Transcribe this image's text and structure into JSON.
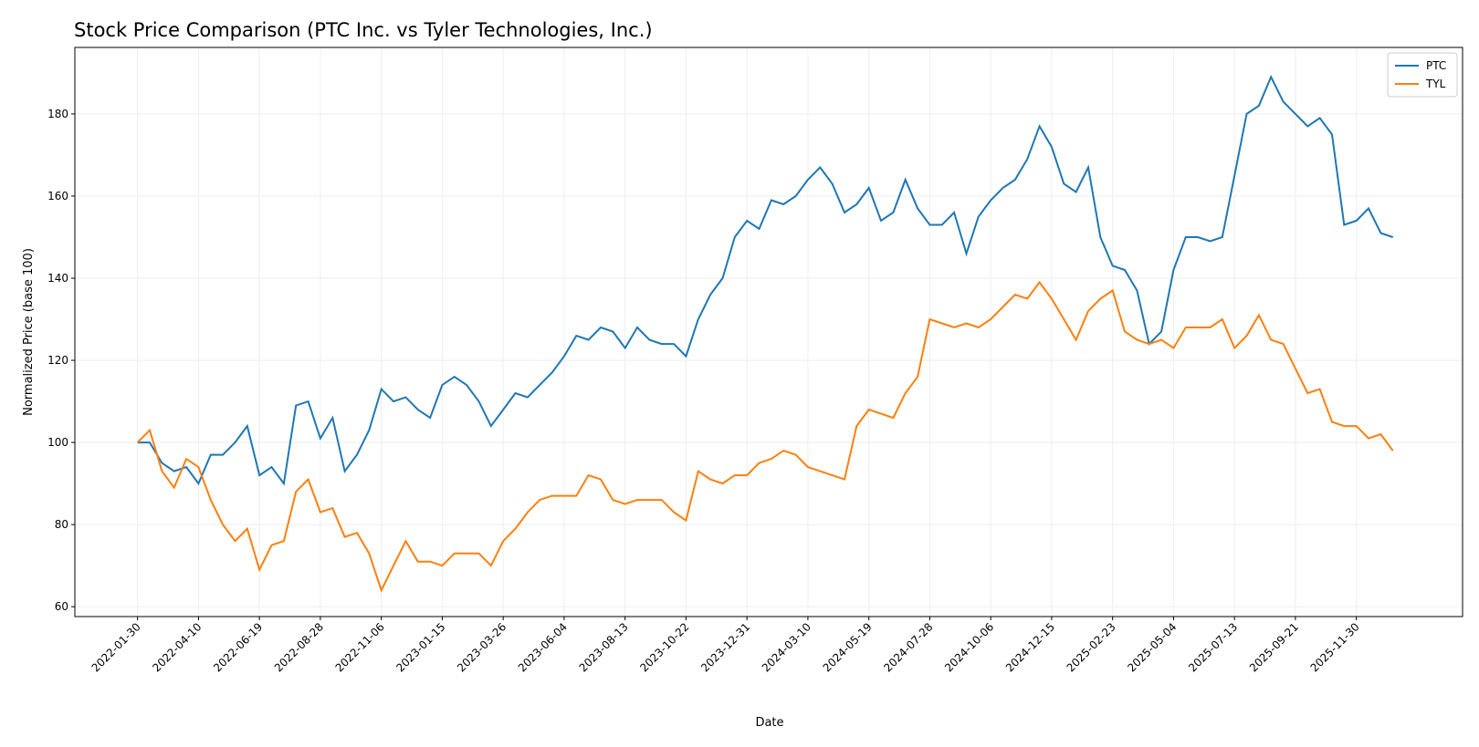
{
  "chart_data": {
    "type": "line",
    "title": "Stock Price Comparison (PTC Inc. vs Tyler Technologies, Inc.)",
    "xlabel": "Date",
    "ylabel": "Normalized Price (base 100)",
    "x": [
      "2022-01-30",
      "2022-02-13",
      "2022-02-27",
      "2022-03-13",
      "2022-03-27",
      "2022-04-10",
      "2022-04-24",
      "2022-05-08",
      "2022-05-22",
      "2022-06-05",
      "2022-06-19",
      "2022-07-03",
      "2022-07-17",
      "2022-07-31",
      "2022-08-14",
      "2022-08-28",
      "2022-09-11",
      "2022-09-25",
      "2022-10-09",
      "2022-10-23",
      "2022-11-06",
      "2022-11-20",
      "2022-12-04",
      "2022-12-18",
      "2023-01-01",
      "2023-01-15",
      "2023-01-29",
      "2023-02-12",
      "2023-02-26",
      "2023-03-12",
      "2023-03-26",
      "2023-04-09",
      "2023-04-23",
      "2023-05-07",
      "2023-05-21",
      "2023-06-04",
      "2023-06-18",
      "2023-07-02",
      "2023-07-16",
      "2023-07-30",
      "2023-08-13",
      "2023-08-27",
      "2023-09-10",
      "2023-09-24",
      "2023-10-08",
      "2023-10-22",
      "2023-11-05",
      "2023-11-19",
      "2023-12-03",
      "2023-12-17",
      "2023-12-31",
      "2024-01-14",
      "2024-01-28",
      "2024-02-11",
      "2024-02-25",
      "2024-03-10",
      "2024-03-24",
      "2024-04-07",
      "2024-04-21",
      "2024-05-05",
      "2024-05-19",
      "2024-06-02",
      "2024-06-16",
      "2024-06-30",
      "2024-07-14",
      "2024-07-28",
      "2024-08-11",
      "2024-08-25",
      "2024-09-08",
      "2024-09-22",
      "2024-10-06",
      "2024-10-20",
      "2024-11-03",
      "2024-11-17",
      "2024-12-01",
      "2024-12-15",
      "2024-12-29",
      "2025-01-12",
      "2025-01-26",
      "2025-02-09",
      "2025-02-23",
      "2025-03-09",
      "2025-03-23",
      "2025-04-06",
      "2025-04-20",
      "2025-05-04",
      "2025-05-18",
      "2025-06-01",
      "2025-06-15",
      "2025-06-29",
      "2025-07-13",
      "2025-07-27",
      "2025-08-10",
      "2025-08-24",
      "2025-09-07",
      "2025-09-21",
      "2025-10-05",
      "2025-10-19",
      "2025-11-02",
      "2025-11-16",
      "2025-11-30",
      "2025-12-14",
      "2025-12-28",
      "2026-01-11"
    ],
    "series": [
      {
        "name": "PTC",
        "color": "#1f77b4",
        "values": [
          100,
          100,
          95,
          93,
          94,
          90,
          97,
          97,
          100,
          104,
          92,
          94,
          90,
          109,
          110,
          101,
          106,
          93,
          97,
          103,
          113,
          110,
          111,
          108,
          106,
          114,
          116,
          114,
          110,
          104,
          108,
          112,
          111,
          114,
          117,
          121,
          126,
          125,
          128,
          127,
          123,
          128,
          125,
          124,
          124,
          121,
          130,
          136,
          140,
          150,
          154,
          152,
          159,
          158,
          160,
          164,
          167,
          163,
          156,
          158,
          162,
          154,
          156,
          164,
          157,
          153,
          153,
          156,
          146,
          155,
          159,
          162,
          164,
          169,
          177,
          172,
          163,
          161,
          167,
          150,
          143,
          142,
          137,
          124,
          127,
          142,
          150,
          150,
          149,
          150,
          165,
          180,
          182,
          189,
          183,
          180,
          177,
          179,
          175,
          153,
          154,
          157,
          151,
          150
        ]
      },
      {
        "name": "TYL",
        "color": "#ff7f0e",
        "values": [
          100,
          103,
          93,
          89,
          96,
          94,
          86,
          80,
          76,
          79,
          69,
          75,
          76,
          88,
          91,
          83,
          84,
          77,
          78,
          73,
          64,
          70,
          76,
          71,
          71,
          70,
          73,
          73,
          73,
          70,
          76,
          79,
          83,
          86,
          87,
          87,
          87,
          92,
          91,
          86,
          85,
          86,
          86,
          86,
          83,
          81,
          93,
          91,
          90,
          92,
          92,
          95,
          96,
          98,
          97,
          94,
          93,
          92,
          91,
          104,
          108,
          107,
          106,
          112,
          116,
          130,
          129,
          128,
          129,
          128,
          130,
          133,
          136,
          135,
          139,
          135,
          130,
          125,
          132,
          135,
          137,
          127,
          125,
          124,
          125,
          123,
          128,
          128,
          128,
          130,
          123,
          126,
          131,
          125,
          124,
          118,
          112,
          113,
          105,
          104,
          104,
          101,
          102,
          98
        ]
      }
    ],
    "xlim": [
      "2021-11-19",
      "2026-04-01"
    ],
    "xticks": [
      "2022-01-30",
      "2022-04-10",
      "2022-06-19",
      "2022-08-28",
      "2022-11-06",
      "2023-01-15",
      "2023-03-26",
      "2023-06-04",
      "2023-08-13",
      "2023-10-22",
      "2023-12-31",
      "2024-03-10",
      "2024-05-19",
      "2024-07-28",
      "2024-10-06",
      "2024-12-15",
      "2025-02-23",
      "2025-05-04",
      "2025-07-13",
      "2025-09-21",
      "2025-11-30"
    ],
    "ylim": [
      57.6,
      196.2
    ],
    "yticks": [
      60,
      80,
      100,
      120,
      140,
      160,
      180
    ],
    "grid": true,
    "legend": "upper right"
  }
}
